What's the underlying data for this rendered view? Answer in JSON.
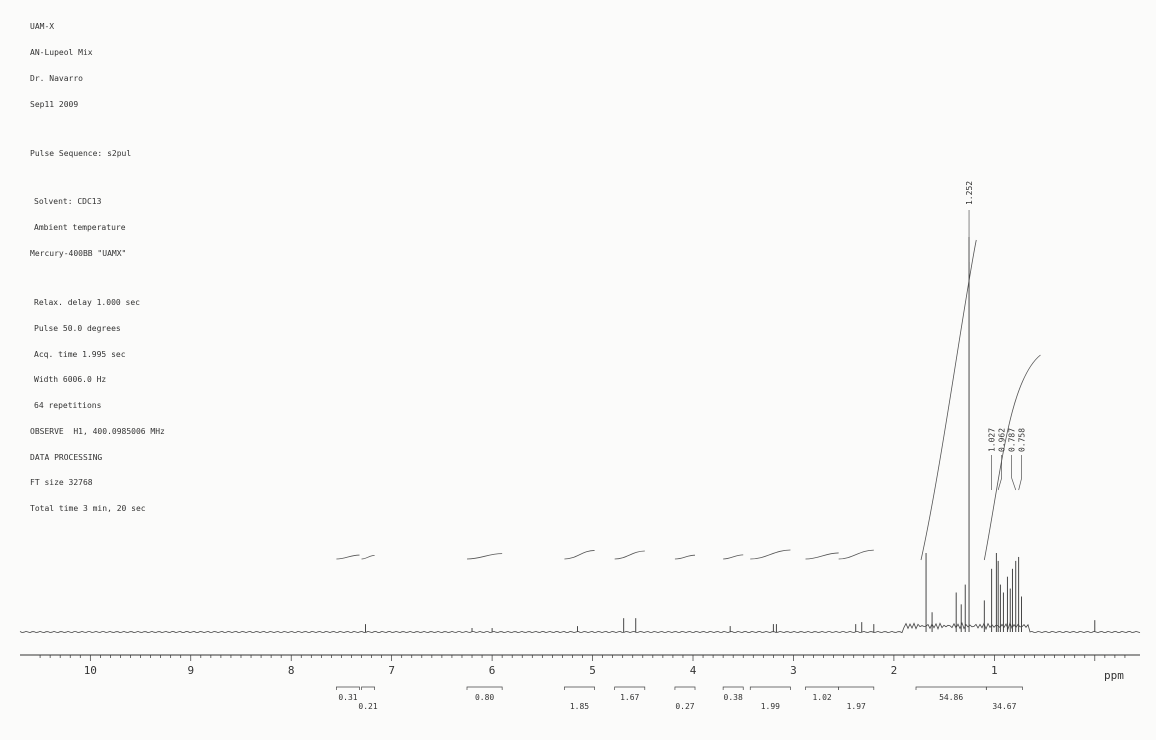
{
  "header": {
    "sample": [
      "UAM-X",
      "AN-Lupeol Mix",
      "Dr. Navarro",
      "Sep11 2009"
    ],
    "pulse_sequence": "Pulse Sequence: s2pul",
    "conditions": [
      "Solvent: CDC13",
      "Ambient temperature",
      "Mercury-400BB \"UAMX\""
    ],
    "acquisition": [
      "Relax. delay 1.000 sec",
      "Pulse 50.0 degrees",
      "Acq. time 1.995 sec",
      "Width 6006.0 Hz",
      "64 repetitions",
      "OBSERVE  H1, 400.0985006 MHz",
      "DATA PROCESSING",
      "FT size 32768",
      "Total time 3 min, 20 sec"
    ]
  },
  "chart_data": {
    "type": "line",
    "title": "",
    "xlabel": "ppm",
    "ylabel": "",
    "xlim": [
      10.7,
      -0.45
    ],
    "x_reversed": true,
    "ylim": [
      0,
      100
    ],
    "grid": false,
    "x_ticks": [
      10,
      9,
      8,
      7,
      6,
      5,
      4,
      3,
      2,
      1
    ],
    "peaks": [
      {
        "ppm": 7.26,
        "height": 2
      },
      {
        "ppm": 6.2,
        "height": 1
      },
      {
        "ppm": 6.0,
        "height": 1
      },
      {
        "ppm": 5.15,
        "height": 1.5
      },
      {
        "ppm": 4.69,
        "height": 3.5
      },
      {
        "ppm": 4.57,
        "height": 3.5
      },
      {
        "ppm": 3.63,
        "height": 1.5
      },
      {
        "ppm": 3.2,
        "height": 2
      },
      {
        "ppm": 3.17,
        "height": 2
      },
      {
        "ppm": 2.38,
        "height": 2
      },
      {
        "ppm": 2.32,
        "height": 2.5
      },
      {
        "ppm": 2.2,
        "height": 2
      },
      {
        "ppm": 1.68,
        "height": 20
      },
      {
        "ppm": 1.62,
        "height": 5
      },
      {
        "ppm": 1.38,
        "height": 10
      },
      {
        "ppm": 1.33,
        "height": 7
      },
      {
        "ppm": 1.29,
        "height": 12
      },
      {
        "ppm": 1.252,
        "height": 100
      },
      {
        "ppm": 1.1,
        "height": 8
      },
      {
        "ppm": 1.027,
        "height": 16
      },
      {
        "ppm": 0.98,
        "height": 20
      },
      {
        "ppm": 0.962,
        "height": 18
      },
      {
        "ppm": 0.94,
        "height": 12
      },
      {
        "ppm": 0.91,
        "height": 10
      },
      {
        "ppm": 0.87,
        "height": 14
      },
      {
        "ppm": 0.842,
        "height": 11
      },
      {
        "ppm": 0.82,
        "height": 16
      },
      {
        "ppm": 0.787,
        "height": 18
      },
      {
        "ppm": 0.758,
        "height": 19
      },
      {
        "ppm": 0.73,
        "height": 9
      },
      {
        "ppm": 0.0,
        "height": 3
      }
    ],
    "peak_labels": [
      {
        "ppm": 1.252,
        "label": "1.252"
      },
      {
        "ppm": 1.027,
        "label": "1.027"
      },
      {
        "ppm": 0.962,
        "label": "0.962"
      },
      {
        "ppm": 0.787,
        "label": "0.787"
      },
      {
        "ppm": 0.758,
        "label": "0.758"
      }
    ],
    "integrals": [
      {
        "from": 7.55,
        "to": 7.32,
        "value": "0.31",
        "row": 0
      },
      {
        "from": 7.3,
        "to": 7.17,
        "value": "0.21",
        "row": 1
      },
      {
        "from": 6.25,
        "to": 5.9,
        "value": "0.80",
        "row": 0
      },
      {
        "from": 5.28,
        "to": 4.98,
        "value": "1.85",
        "row": 1
      },
      {
        "from": 4.78,
        "to": 4.48,
        "value": "1.67",
        "row": 0
      },
      {
        "from": 4.18,
        "to": 3.98,
        "value": "0.27",
        "row": 1
      },
      {
        "from": 3.7,
        "to": 3.5,
        "value": "0.38",
        "row": 0
      },
      {
        "from": 3.43,
        "to": 3.03,
        "value": "1.99",
        "row": 1
      },
      {
        "from": 2.88,
        "to": 2.55,
        "value": "1.02",
        "row": 0
      },
      {
        "from": 2.55,
        "to": 2.2,
        "value": "1.97",
        "row": 1
      },
      {
        "from": 1.78,
        "to": 1.08,
        "value": "54.86",
        "row": 0
      },
      {
        "from": 1.08,
        "to": 0.72,
        "value": "34.67",
        "row": 1
      }
    ]
  }
}
